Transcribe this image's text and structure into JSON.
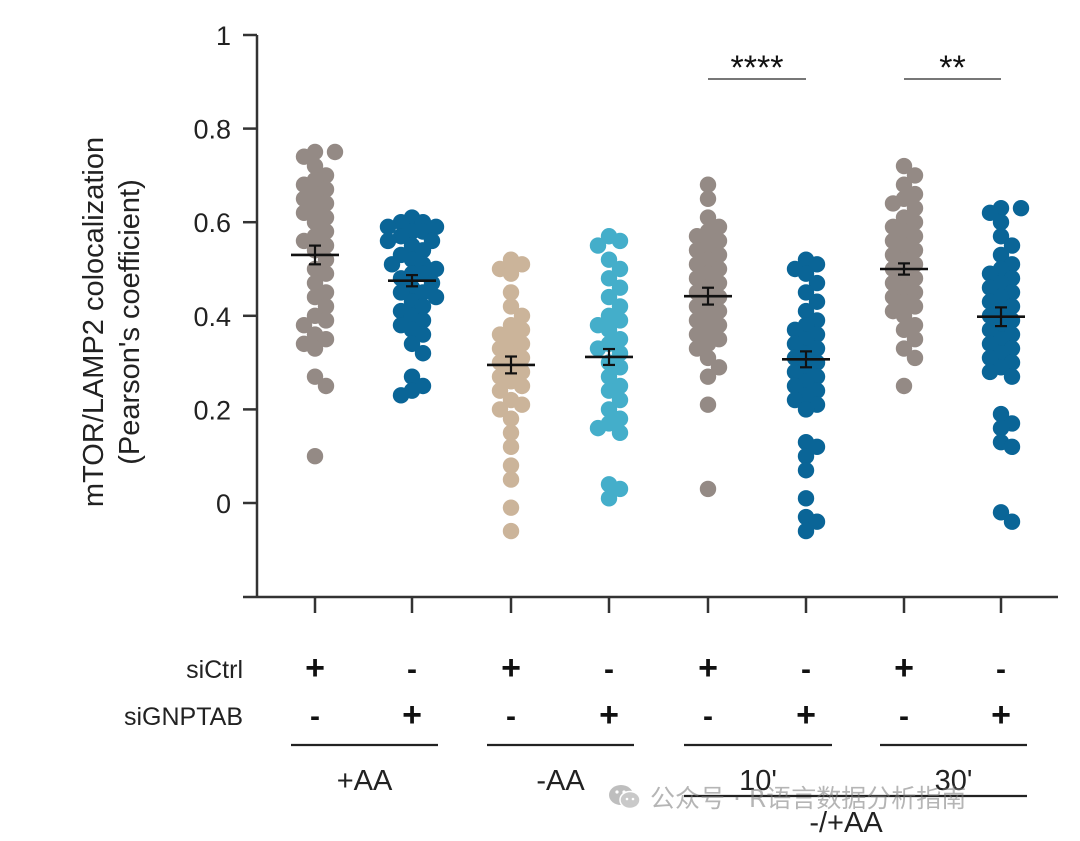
{
  "chart_data": {
    "type": "scatter",
    "subtype": "dot-plot-with-mean-sem",
    "ylabel_line1": "mTOR/LAMP2 colocalization",
    "ylabel_line2": "(Pearson's coefficient)",
    "ylim": [
      -0.2,
      1.0
    ],
    "yticks": [
      0,
      0.2,
      0.4,
      0.6,
      0.8,
      1
    ],
    "ytick_labels": [
      "0",
      "0.2",
      "0.4",
      "0.6",
      "0.8",
      "1"
    ],
    "grid": false,
    "row_labels": {
      "siCtrl": "siCtrl",
      "siGNPTAB": "siGNPTAB"
    },
    "series": [
      {
        "name": "+AA siCtrl",
        "group": "+AA",
        "siCtrl": "+",
        "siGNPTAB": "-",
        "color": "#948a85",
        "mean": 0.53,
        "sem": 0.02,
        "values": [
          0.75,
          0.75,
          0.74,
          0.72,
          0.7,
          0.69,
          0.68,
          0.67,
          0.66,
          0.65,
          0.64,
          0.63,
          0.62,
          0.61,
          0.6,
          0.58,
          0.57,
          0.56,
          0.55,
          0.54,
          0.52,
          0.5,
          0.49,
          0.47,
          0.45,
          0.44,
          0.42,
          0.4,
          0.39,
          0.38,
          0.36,
          0.35,
          0.34,
          0.33,
          0.27,
          0.25,
          0.1
        ]
      },
      {
        "name": "+AA siGNPTAB",
        "group": "+AA",
        "siCtrl": "-",
        "siGNPTAB": "+",
        "color": "#0a6597",
        "mean": 0.475,
        "sem": 0.012,
        "values": [
          0.61,
          0.6,
          0.6,
          0.59,
          0.59,
          0.58,
          0.58,
          0.57,
          0.56,
          0.56,
          0.55,
          0.54,
          0.53,
          0.52,
          0.51,
          0.51,
          0.5,
          0.49,
          0.49,
          0.48,
          0.47,
          0.46,
          0.45,
          0.45,
          0.44,
          0.43,
          0.42,
          0.41,
          0.4,
          0.39,
          0.38,
          0.37,
          0.36,
          0.34,
          0.32,
          0.27,
          0.25,
          0.24,
          0.23
        ]
      },
      {
        "name": "-AA siCtrl",
        "group": "-AA",
        "siCtrl": "+",
        "siGNPTAB": "-",
        "color": "#cbb49a",
        "mean": 0.295,
        "sem": 0.018,
        "values": [
          0.52,
          0.51,
          0.5,
          0.49,
          0.45,
          0.42,
          0.4,
          0.38,
          0.37,
          0.36,
          0.35,
          0.34,
          0.33,
          0.32,
          0.31,
          0.3,
          0.29,
          0.28,
          0.27,
          0.26,
          0.25,
          0.24,
          0.22,
          0.21,
          0.2,
          0.18,
          0.15,
          0.12,
          0.08,
          0.05,
          -0.01,
          -0.06
        ]
      },
      {
        "name": "-AA siGNPTAB",
        "group": "-AA",
        "siCtrl": "-",
        "siGNPTAB": "+",
        "color": "#44aeca",
        "mean": 0.312,
        "sem": 0.017,
        "values": [
          0.57,
          0.56,
          0.55,
          0.52,
          0.5,
          0.48,
          0.46,
          0.44,
          0.42,
          0.4,
          0.39,
          0.38,
          0.37,
          0.35,
          0.34,
          0.33,
          0.32,
          0.3,
          0.29,
          0.27,
          0.25,
          0.24,
          0.22,
          0.2,
          0.18,
          0.17,
          0.16,
          0.15,
          0.04,
          0.03,
          0.01
        ]
      },
      {
        "name": "10' siCtrl",
        "group": "10'",
        "siCtrl": "+",
        "siGNPTAB": "-",
        "color": "#948a85",
        "mean": 0.442,
        "sem": 0.018,
        "values": [
          0.68,
          0.65,
          0.61,
          0.59,
          0.58,
          0.57,
          0.56,
          0.55,
          0.54,
          0.53,
          0.52,
          0.51,
          0.5,
          0.49,
          0.48,
          0.47,
          0.46,
          0.45,
          0.44,
          0.43,
          0.42,
          0.41,
          0.4,
          0.39,
          0.38,
          0.37,
          0.36,
          0.35,
          0.34,
          0.33,
          0.31,
          0.29,
          0.27,
          0.21,
          0.03
        ]
      },
      {
        "name": "10' siGNPTAB",
        "group": "10'",
        "siCtrl": "-",
        "siGNPTAB": "+",
        "color": "#0a6597",
        "mean": 0.307,
        "sem": 0.017,
        "values": [
          0.52,
          0.51,
          0.5,
          0.49,
          0.47,
          0.45,
          0.43,
          0.41,
          0.39,
          0.38,
          0.37,
          0.36,
          0.35,
          0.34,
          0.33,
          0.32,
          0.31,
          0.3,
          0.29,
          0.28,
          0.27,
          0.26,
          0.25,
          0.24,
          0.23,
          0.22,
          0.21,
          0.2,
          0.13,
          0.12,
          0.1,
          0.07,
          0.01,
          -0.03,
          -0.04,
          -0.06
        ]
      },
      {
        "name": "30' siCtrl",
        "group": "30'",
        "siCtrl": "+",
        "siGNPTAB": "-",
        "color": "#948a85",
        "mean": 0.5,
        "sem": 0.012,
        "values": [
          0.72,
          0.7,
          0.68,
          0.66,
          0.65,
          0.64,
          0.63,
          0.61,
          0.6,
          0.59,
          0.58,
          0.57,
          0.56,
          0.55,
          0.54,
          0.53,
          0.52,
          0.51,
          0.5,
          0.49,
          0.48,
          0.47,
          0.46,
          0.45,
          0.44,
          0.43,
          0.42,
          0.41,
          0.4,
          0.38,
          0.37,
          0.35,
          0.33,
          0.31,
          0.25
        ]
      },
      {
        "name": "30' siGNPTAB",
        "group": "30'",
        "siCtrl": "-",
        "siGNPTAB": "+",
        "color": "#0a6597",
        "mean": 0.398,
        "sem": 0.02,
        "values": [
          0.63,
          0.63,
          0.62,
          0.6,
          0.57,
          0.55,
          0.53,
          0.51,
          0.5,
          0.49,
          0.48,
          0.47,
          0.46,
          0.45,
          0.44,
          0.43,
          0.42,
          0.41,
          0.4,
          0.39,
          0.38,
          0.37,
          0.36,
          0.35,
          0.34,
          0.33,
          0.32,
          0.31,
          0.3,
          0.29,
          0.28,
          0.27,
          0.19,
          0.17,
          0.16,
          0.13,
          0.12,
          -0.02,
          -0.04
        ]
      }
    ],
    "groups": [
      "+AA",
      "-AA",
      "10'",
      "30'"
    ],
    "supergroup_label": "-/+AA",
    "significance": [
      {
        "group": "10'",
        "label": "****"
      },
      {
        "group": "30'",
        "label": "**"
      }
    ]
  },
  "watermark": {
    "icon": "wechat-icon",
    "text": "公众号 · R语言数据分析指南"
  }
}
